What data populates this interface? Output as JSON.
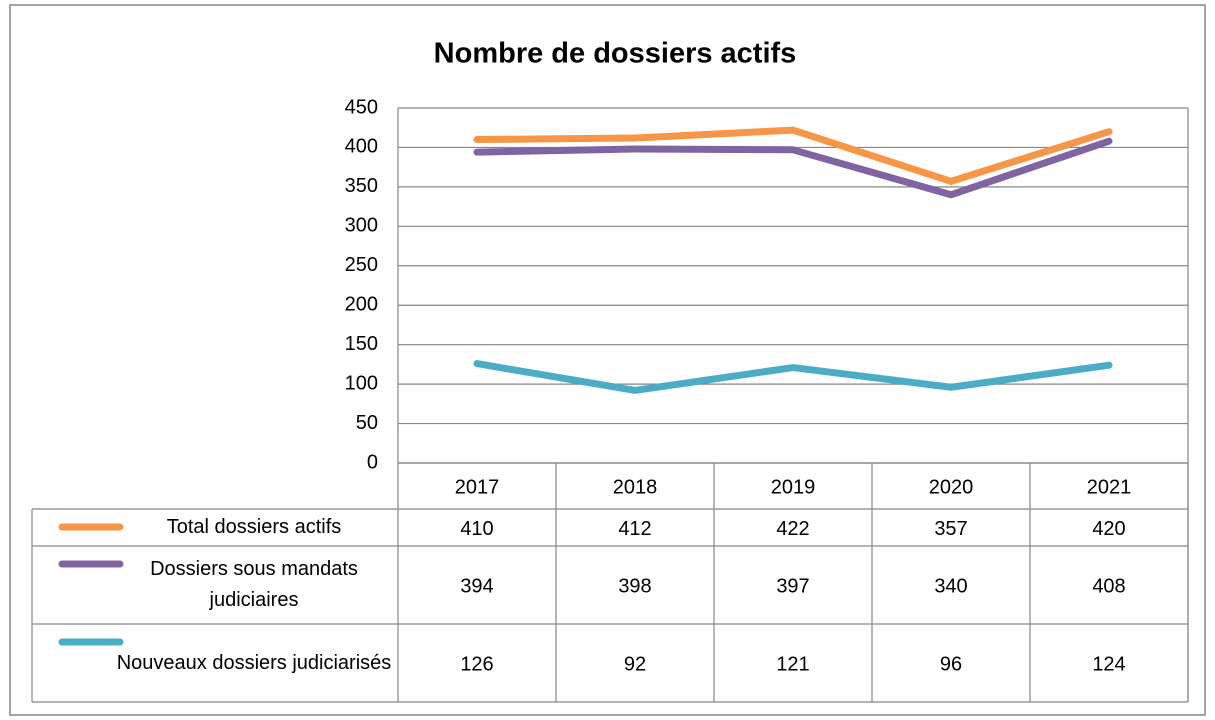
{
  "chart_data": {
    "type": "line",
    "title": "Nombre de dossiers actifs",
    "categories": [
      "2017",
      "2018",
      "2019",
      "2020",
      "2021"
    ],
    "series": [
      {
        "name": "Total dossiers actifs",
        "color": "#f79646",
        "values": [
          410,
          412,
          422,
          357,
          420
        ]
      },
      {
        "name": "Dossiers sous mandats judiciaires",
        "color": "#8064a2",
        "values": [
          394,
          398,
          397,
          340,
          408
        ]
      },
      {
        "name": "Nouveaux dossiers judiciarisés",
        "color": "#4bacc6",
        "values": [
          126,
          92,
          121,
          96,
          124
        ]
      }
    ],
    "ylim": [
      0,
      450
    ],
    "yticks": [
      0,
      50,
      100,
      150,
      200,
      250,
      300,
      350,
      400,
      450
    ],
    "grid": true
  }
}
